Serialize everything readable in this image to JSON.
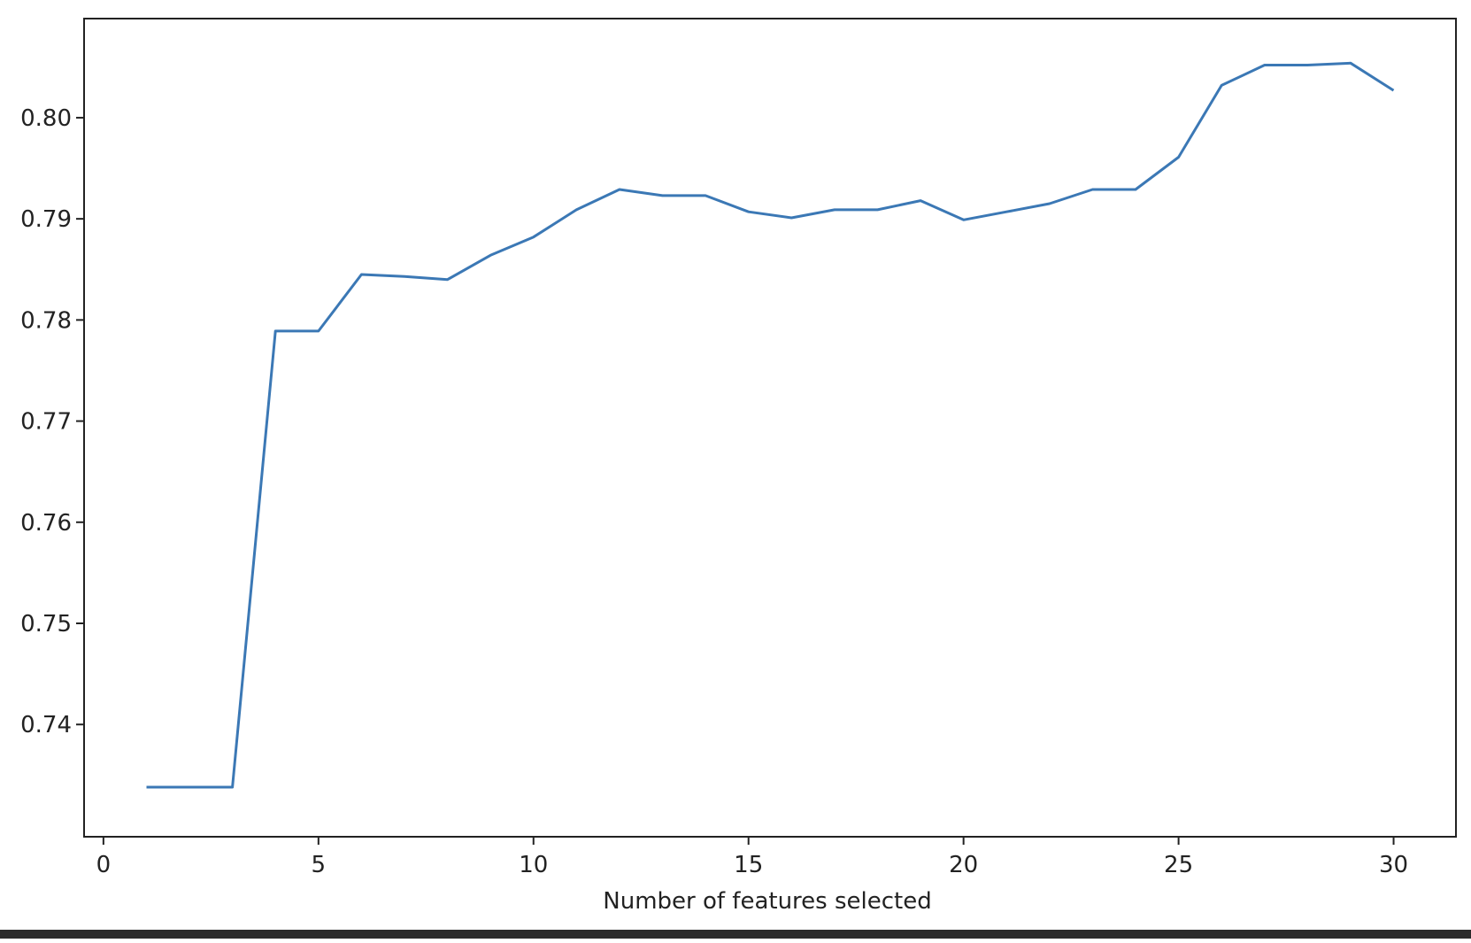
{
  "chart_data": {
    "type": "line",
    "title": "",
    "xlabel": "Number of features selected",
    "ylabel": "",
    "xlim": [
      -0.45,
      31.45
    ],
    "ylim": [
      0.7289,
      0.8098
    ],
    "xticks": [
      0,
      5,
      10,
      15,
      20,
      25,
      30
    ],
    "xtick_labels": [
      "0",
      "5",
      "10",
      "15",
      "20",
      "25",
      "30"
    ],
    "yticks": [
      0.74,
      0.75,
      0.76,
      0.77,
      0.78,
      0.79,
      0.8
    ],
    "ytick_labels": [
      "0.74",
      "0.75",
      "0.76",
      "0.77",
      "0.78",
      "0.79",
      "0.80"
    ],
    "grid": false,
    "series": [
      {
        "color": "#3b78b5",
        "x": [
          1,
          2,
          3,
          4,
          5,
          6,
          7,
          8,
          9,
          10,
          11,
          12,
          13,
          14,
          15,
          16,
          17,
          18,
          19,
          20,
          21,
          22,
          23,
          24,
          25,
          26,
          27,
          28,
          29,
          30
        ],
        "y": [
          0.7338,
          0.7338,
          0.7338,
          0.7789,
          0.7789,
          0.7845,
          0.7843,
          0.784,
          0.7864,
          0.7882,
          0.7909,
          0.7929,
          0.7923,
          0.7923,
          0.7907,
          0.7901,
          0.7909,
          0.7909,
          0.7918,
          0.7899,
          0.7907,
          0.7915,
          0.7929,
          0.7929,
          0.7961,
          0.8032,
          0.8052,
          0.8052,
          0.8054,
          0.8027
        ]
      }
    ]
  },
  "colors": {
    "line": "#3b78b5",
    "axes": "#222222",
    "background": "#ffffff",
    "bottom_bar": "#2b2b2b"
  }
}
